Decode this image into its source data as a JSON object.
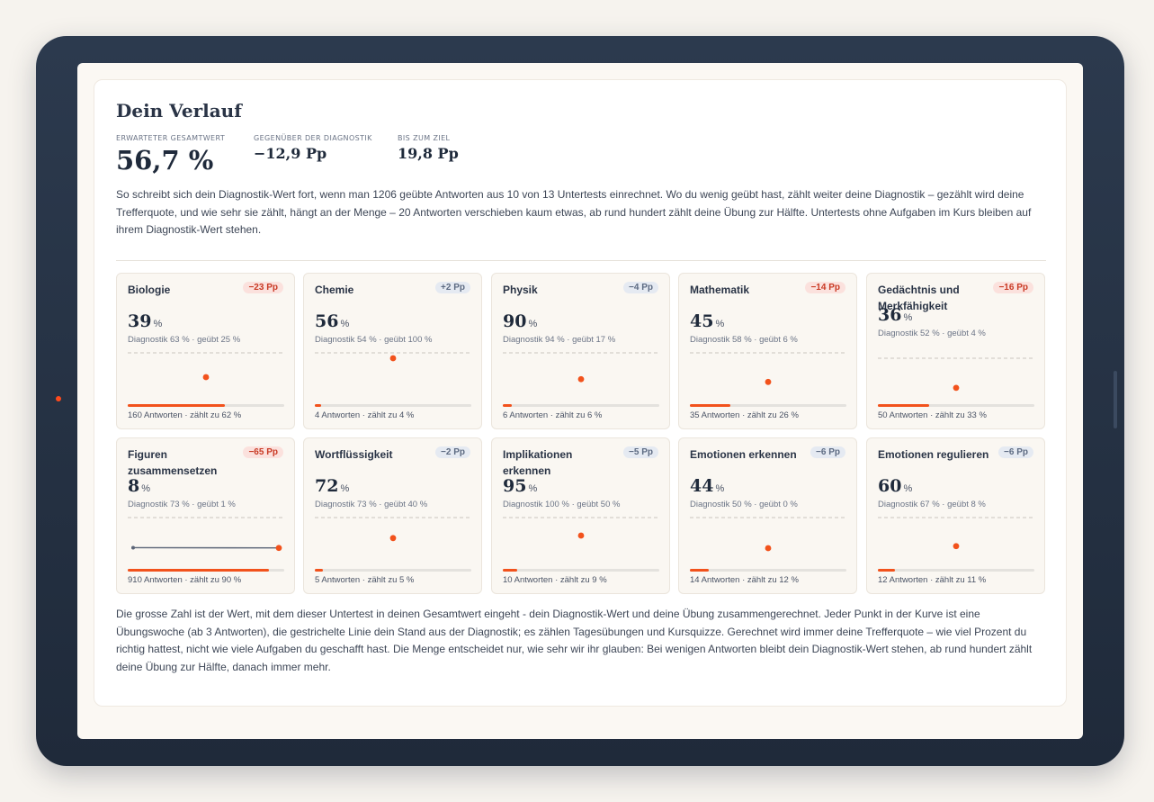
{
  "page": {
    "title": "Dein Verlauf",
    "stats": [
      {
        "label": "Erwarteter Gesamtwert",
        "value": "56,7 %"
      },
      {
        "label": "Gegenüber der Diagnostik",
        "value": "−12,9 Pp"
      },
      {
        "label": "Bis zum Ziel",
        "value": "19,8 Pp"
      }
    ],
    "intro": "So schreibt sich dein Diagnostik-Wert fort, wenn man 1206 geübte Antworten aus 10 von 13 Untertests einrechnet. Wo du wenig geübt hast, zählt weiter deine Diagnostik – gezählt wird deine Trefferquote, und wie sehr sie zählt, hängt an der Menge – 20 Antworten verschieben kaum etwas, ab rund hundert zählt deine Übung zur Hälfte. Untertests ohne Aufgaben im Kurs bleiben auf ihrem Diagnostik-Wert stehen.",
    "outro": "Die grosse Zahl ist der Wert, mit dem dieser Untertest in deinen Gesamtwert eingeht - dein Diagnostik-Wert und deine Übung zusammengerechnet. Jeder Punkt in der Kurve ist eine Übungswoche (ab 3 Antworten), die gestrichelte Linie dein Stand aus der Diagnostik; es zählen Tagesübungen und Kursquizze. Gerechnet wird immer deine Trefferquote – wie viel Prozent du richtig hattest, nicht wie viele Aufgaben du geschafft hast. Die Menge entscheidet nur, wie sehr wir ihr glauben: Bei wenigen Antworten bleibt dein Diagnostik-Wert stehen, ab rund hundert zählt deine Übung zur Hälfte, danach immer mehr."
  },
  "colors": {
    "accent": "#f2521c",
    "negative_badge": "#c93a24",
    "positive_badge": "#5d6b82",
    "line": "#5b6577"
  },
  "cards": [
    {
      "name": "Biologie",
      "badge": "−23 Pp",
      "tone": "neg",
      "score": "39",
      "unit": "%",
      "sub": "Diagnostik 63 % · geübt 25 %",
      "foot": "160 Antworten · zählt zu 62 %",
      "weight": 0.62,
      "diag": 63,
      "weeks": [
        25
      ]
    },
    {
      "name": "Chemie",
      "badge": "+2 Pp",
      "tone": "pos",
      "score": "56",
      "unit": "%",
      "sub": "Diagnostik 54 % · geübt 100 %",
      "foot": "4 Antworten · zählt zu 4 %",
      "weight": 0.04,
      "diag": 54,
      "weeks": [
        100
      ]
    },
    {
      "name": "Physik",
      "badge": "−4 Pp",
      "tone": "pos",
      "score": "90",
      "unit": "%",
      "sub": "Diagnostik 94 % · geübt 17 %",
      "foot": "6 Antworten · zählt zu 6 %",
      "weight": 0.06,
      "diag": 94,
      "weeks": [
        17
      ]
    },
    {
      "name": "Mathematik",
      "badge": "−14 Pp",
      "tone": "neg",
      "score": "45",
      "unit": "%",
      "sub": "Diagnostik 58 % · geübt 6 %",
      "foot": "35 Antworten · zählt zu 26 %",
      "weight": 0.26,
      "diag": 58,
      "weeks": [
        6
      ]
    },
    {
      "name": "Gedächtnis und Merkfähigkeit",
      "badge": "−16 Pp",
      "tone": "neg",
      "score": "36",
      "unit": "%",
      "sub": "Diagnostik 52 % · geübt 4 %",
      "foot": "50 Antworten · zählt zu 33 %",
      "weight": 0.33,
      "diag": 52,
      "weeks": [
        4
      ]
    },
    {
      "name": "Figuren zusammensetzen",
      "badge": "−65 Pp",
      "tone": "neg",
      "score": "8",
      "unit": "%",
      "sub": "Diagnostik 73 % · geübt 1 %",
      "foot": "910 Antworten · zählt zu 90 %",
      "weight": 0.9,
      "diag": 73,
      "weeks": [
        2,
        1
      ]
    },
    {
      "name": "Wortflüssigkeit",
      "badge": "−2 Pp",
      "tone": "pos",
      "score": "72",
      "unit": "%",
      "sub": "Diagnostik 73 % · geübt 40 %",
      "foot": "5 Antworten · zählt zu 5 %",
      "weight": 0.05,
      "diag": 73,
      "weeks": [
        40
      ]
    },
    {
      "name": "Implikationen erkennen",
      "badge": "−5 Pp",
      "tone": "pos",
      "score": "95",
      "unit": "%",
      "sub": "Diagnostik 100 % · geübt 50 %",
      "foot": "10 Antworten · zählt zu 9 %",
      "weight": 0.09,
      "diag": 100,
      "weeks": [
        50
      ]
    },
    {
      "name": "Emotionen erkennen",
      "badge": "−6 Pp",
      "tone": "pos",
      "score": "44",
      "unit": "%",
      "sub": "Diagnostik 50 % · geübt 0 %",
      "foot": "14 Antworten · zählt zu 12 %",
      "weight": 0.12,
      "diag": 50,
      "weeks": [
        0
      ]
    },
    {
      "name": "Emotionen regulieren",
      "badge": "−6 Pp",
      "tone": "pos",
      "score": "60",
      "unit": "%",
      "sub": "Diagnostik 67 % · geübt 8 %",
      "foot": "12 Antworten · zählt zu 11 %",
      "weight": 0.11,
      "diag": 67,
      "weeks": [
        8
      ]
    }
  ]
}
